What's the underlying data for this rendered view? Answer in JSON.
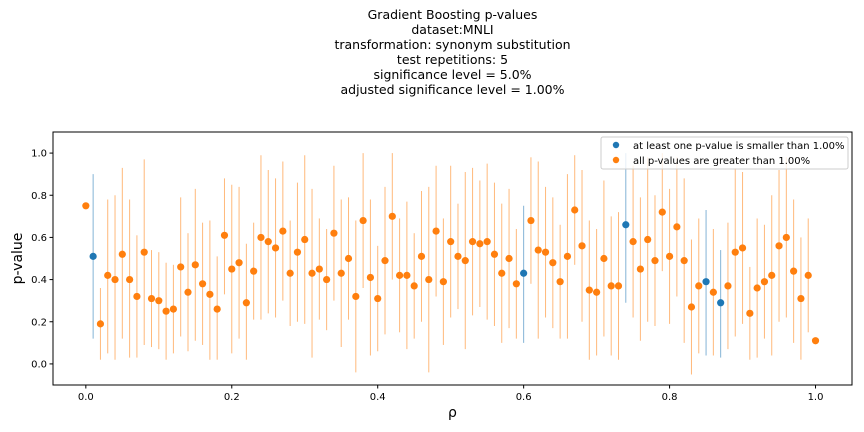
{
  "chart_data": {
    "type": "scatter",
    "title_lines": [
      "Gradient Boosting p-values",
      "",
      "dataset:MNLI",
      "transformation: synonym substitution",
      "test repetitions: 5",
      "significance level = 5.0%",
      "adjusted significance level = 1.00%"
    ],
    "xlabel": "ρ",
    "ylabel": "p-value",
    "xlim": [
      -0.045,
      1.05
    ],
    "ylim": [
      -0.1,
      1.1
    ],
    "xticks": [
      0.0,
      0.2,
      0.4,
      0.6,
      0.8,
      1.0
    ],
    "xtick_labels": [
      "0.0",
      "0.2",
      "0.4",
      "0.6",
      "0.8",
      "1.0"
    ],
    "yticks": [
      0.0,
      0.2,
      0.4,
      0.6,
      0.8,
      1.0
    ],
    "ytick_labels": [
      "0.0",
      "0.2",
      "0.4",
      "0.6",
      "0.8",
      "1.0"
    ],
    "legend_position": "top-right",
    "grid": false,
    "series": [
      {
        "name": "at least one p-value is smaller than 1.00%",
        "color": "#1f77b4",
        "points": [
          {
            "x": 0.01,
            "y": 0.51,
            "ymin": 0.12,
            "ymax": 0.9
          },
          {
            "x": 0.6,
            "y": 0.43,
            "ymin": 0.1,
            "ymax": 0.75
          },
          {
            "x": 0.74,
            "y": 0.66,
            "ymin": 0.29,
            "ymax": 1.0
          },
          {
            "x": 0.85,
            "y": 0.39,
            "ymin": 0.04,
            "ymax": 0.73
          },
          {
            "x": 0.87,
            "y": 0.29,
            "ymin": 0.03,
            "ymax": 0.54
          }
        ]
      },
      {
        "name": "all p-values are greater than 1.00%",
        "color": "#ff7f0e",
        "points": [
          {
            "x": 0.0,
            "y": 0.75,
            "ymin": 0.75,
            "ymax": 0.75
          },
          {
            "x": 0.02,
            "y": 0.19,
            "ymin": 0.02,
            "ymax": 0.36
          },
          {
            "x": 0.03,
            "y": 0.42,
            "ymin": 0.05,
            "ymax": 0.78
          },
          {
            "x": 0.04,
            "y": 0.4,
            "ymin": 0.02,
            "ymax": 0.8
          },
          {
            "x": 0.05,
            "y": 0.52,
            "ymin": 0.12,
            "ymax": 0.93
          },
          {
            "x": 0.06,
            "y": 0.4,
            "ymin": 0.03,
            "ymax": 0.78
          },
          {
            "x": 0.07,
            "y": 0.32,
            "ymin": 0.03,
            "ymax": 0.61
          },
          {
            "x": 0.08,
            "y": 0.53,
            "ymin": 0.09,
            "ymax": 0.97
          },
          {
            "x": 0.09,
            "y": 0.31,
            "ymin": 0.08,
            "ymax": 0.54
          },
          {
            "x": 0.1,
            "y": 0.3,
            "ymin": 0.07,
            "ymax": 0.53
          },
          {
            "x": 0.11,
            "y": 0.25,
            "ymin": 0.02,
            "ymax": 0.48
          },
          {
            "x": 0.12,
            "y": 0.26,
            "ymin": 0.05,
            "ymax": 0.47
          },
          {
            "x": 0.13,
            "y": 0.46,
            "ymin": 0.13,
            "ymax": 0.79
          },
          {
            "x": 0.14,
            "y": 0.34,
            "ymin": 0.06,
            "ymax": 0.62
          },
          {
            "x": 0.15,
            "y": 0.47,
            "ymin": 0.11,
            "ymax": 0.83
          },
          {
            "x": 0.16,
            "y": 0.38,
            "ymin": 0.09,
            "ymax": 0.67
          },
          {
            "x": 0.17,
            "y": 0.33,
            "ymin": 0.02,
            "ymax": 0.68
          },
          {
            "x": 0.18,
            "y": 0.26,
            "ymin": 0.02,
            "ymax": 0.51
          },
          {
            "x": 0.19,
            "y": 0.61,
            "ymin": 0.33,
            "ymax": 0.88
          },
          {
            "x": 0.2,
            "y": 0.45,
            "ymin": 0.05,
            "ymax": 0.85
          },
          {
            "x": 0.21,
            "y": 0.48,
            "ymin": 0.12,
            "ymax": 0.84
          },
          {
            "x": 0.22,
            "y": 0.29,
            "ymin": 0.02,
            "ymax": 0.57
          },
          {
            "x": 0.23,
            "y": 0.44,
            "ymin": 0.21,
            "ymax": 0.67
          },
          {
            "x": 0.24,
            "y": 0.6,
            "ymin": 0.21,
            "ymax": 0.99
          },
          {
            "x": 0.25,
            "y": 0.58,
            "ymin": 0.24,
            "ymax": 0.92
          },
          {
            "x": 0.26,
            "y": 0.55,
            "ymin": 0.22,
            "ymax": 0.88
          },
          {
            "x": 0.27,
            "y": 0.63,
            "ymin": 0.3,
            "ymax": 0.96
          },
          {
            "x": 0.28,
            "y": 0.43,
            "ymin": 0.18,
            "ymax": 0.68
          },
          {
            "x": 0.29,
            "y": 0.53,
            "ymin": 0.2,
            "ymax": 0.86
          },
          {
            "x": 0.3,
            "y": 0.59,
            "ymin": 0.19,
            "ymax": 0.99
          },
          {
            "x": 0.31,
            "y": 0.43,
            "ymin": 0.03,
            "ymax": 0.83
          },
          {
            "x": 0.32,
            "y": 0.45,
            "ymin": 0.21,
            "ymax": 0.69
          },
          {
            "x": 0.33,
            "y": 0.4,
            "ymin": 0.16,
            "ymax": 0.64
          },
          {
            "x": 0.34,
            "y": 0.62,
            "ymin": 0.3,
            "ymax": 0.94
          },
          {
            "x": 0.35,
            "y": 0.43,
            "ymin": 0.08,
            "ymax": 0.78
          },
          {
            "x": 0.36,
            "y": 0.5,
            "ymin": 0.21,
            "ymax": 0.79
          },
          {
            "x": 0.37,
            "y": 0.32,
            "ymin": -0.04,
            "ymax": 0.68
          },
          {
            "x": 0.38,
            "y": 0.68,
            "ymin": 0.36,
            "ymax": 1.0
          },
          {
            "x": 0.39,
            "y": 0.41,
            "ymin": 0.04,
            "ymax": 0.78
          },
          {
            "x": 0.4,
            "y": 0.31,
            "ymin": 0.06,
            "ymax": 0.56
          },
          {
            "x": 0.41,
            "y": 0.49,
            "ymin": 0.14,
            "ymax": 0.84
          },
          {
            "x": 0.42,
            "y": 0.7,
            "ymin": 0.4,
            "ymax": 1.0
          },
          {
            "x": 0.43,
            "y": 0.42,
            "ymin": 0.15,
            "ymax": 0.69
          },
          {
            "x": 0.44,
            "y": 0.42,
            "ymin": 0.07,
            "ymax": 0.77
          },
          {
            "x": 0.45,
            "y": 0.37,
            "ymin": 0.12,
            "ymax": 0.62
          },
          {
            "x": 0.46,
            "y": 0.51,
            "ymin": 0.2,
            "ymax": 0.82
          },
          {
            "x": 0.47,
            "y": 0.4,
            "ymin": -0.04,
            "ymax": 0.84
          },
          {
            "x": 0.48,
            "y": 0.63,
            "ymin": 0.32,
            "ymax": 0.94
          },
          {
            "x": 0.49,
            "y": 0.39,
            "ymin": 0.09,
            "ymax": 0.69
          },
          {
            "x": 0.5,
            "y": 0.58,
            "ymin": 0.22,
            "ymax": 0.94
          },
          {
            "x": 0.51,
            "y": 0.51,
            "ymin": 0.26,
            "ymax": 0.76
          },
          {
            "x": 0.52,
            "y": 0.49,
            "ymin": 0.07,
            "ymax": 0.91
          },
          {
            "x": 0.53,
            "y": 0.58,
            "ymin": 0.23,
            "ymax": 0.93
          },
          {
            "x": 0.54,
            "y": 0.57,
            "ymin": 0.27,
            "ymax": 0.87
          },
          {
            "x": 0.55,
            "y": 0.58,
            "ymin": 0.21,
            "ymax": 0.95
          },
          {
            "x": 0.56,
            "y": 0.52,
            "ymin": 0.18,
            "ymax": 0.86
          },
          {
            "x": 0.57,
            "y": 0.43,
            "ymin": 0.1,
            "ymax": 0.76
          },
          {
            "x": 0.58,
            "y": 0.5,
            "ymin": 0.17,
            "ymax": 0.83
          },
          {
            "x": 0.59,
            "y": 0.38,
            "ymin": 0.12,
            "ymax": 0.64
          },
          {
            "x": 0.61,
            "y": 0.68,
            "ymin": 0.38,
            "ymax": 0.98
          },
          {
            "x": 0.62,
            "y": 0.54,
            "ymin": 0.12,
            "ymax": 0.96
          },
          {
            "x": 0.63,
            "y": 0.53,
            "ymin": 0.22,
            "ymax": 0.84
          },
          {
            "x": 0.64,
            "y": 0.48,
            "ymin": 0.17,
            "ymax": 0.79
          },
          {
            "x": 0.65,
            "y": 0.39,
            "ymin": 0.12,
            "ymax": 0.66
          },
          {
            "x": 0.66,
            "y": 0.51,
            "ymin": 0.12,
            "ymax": 0.9
          },
          {
            "x": 0.67,
            "y": 0.73,
            "ymin": 0.47,
            "ymax": 0.99
          },
          {
            "x": 0.68,
            "y": 0.56,
            "ymin": 0.2,
            "ymax": 0.92
          },
          {
            "x": 0.69,
            "y": 0.35,
            "ymin": 0.02,
            "ymax": 0.68
          },
          {
            "x": 0.7,
            "y": 0.34,
            "ymin": 0.04,
            "ymax": 0.64
          },
          {
            "x": 0.71,
            "y": 0.5,
            "ymin": 0.13,
            "ymax": 0.87
          },
          {
            "x": 0.72,
            "y": 0.37,
            "ymin": 0.04,
            "ymax": 0.7
          },
          {
            "x": 0.73,
            "y": 0.37,
            "ymin": 0.02,
            "ymax": 0.72
          },
          {
            "x": 0.75,
            "y": 0.58,
            "ymin": 0.22,
            "ymax": 0.94
          },
          {
            "x": 0.76,
            "y": 0.45,
            "ymin": 0.11,
            "ymax": 0.79
          },
          {
            "x": 0.77,
            "y": 0.59,
            "ymin": 0.2,
            "ymax": 0.98
          },
          {
            "x": 0.78,
            "y": 0.49,
            "ymin": 0.18,
            "ymax": 0.8
          },
          {
            "x": 0.79,
            "y": 0.72,
            "ymin": 0.44,
            "ymax": 1.0
          },
          {
            "x": 0.8,
            "y": 0.51,
            "ymin": 0.19,
            "ymax": 0.83
          },
          {
            "x": 0.81,
            "y": 0.65,
            "ymin": 0.32,
            "ymax": 0.98
          },
          {
            "x": 0.82,
            "y": 0.49,
            "ymin": 0.1,
            "ymax": 0.88
          },
          {
            "x": 0.83,
            "y": 0.27,
            "ymin": -0.05,
            "ymax": 0.59
          },
          {
            "x": 0.84,
            "y": 0.37,
            "ymin": 0.05,
            "ymax": 0.69
          },
          {
            "x": 0.86,
            "y": 0.34,
            "ymin": 0.04,
            "ymax": 0.64
          },
          {
            "x": 0.88,
            "y": 0.37,
            "ymin": 0.07,
            "ymax": 0.67
          },
          {
            "x": 0.89,
            "y": 0.53,
            "ymin": 0.13,
            "ymax": 0.93
          },
          {
            "x": 0.9,
            "y": 0.55,
            "ymin": 0.19,
            "ymax": 0.91
          },
          {
            "x": 0.91,
            "y": 0.24,
            "ymin": 0.02,
            "ymax": 0.46
          },
          {
            "x": 0.92,
            "y": 0.36,
            "ymin": 0.03,
            "ymax": 0.69
          },
          {
            "x": 0.93,
            "y": 0.39,
            "ymin": 0.12,
            "ymax": 0.66
          },
          {
            "x": 0.94,
            "y": 0.42,
            "ymin": 0.04,
            "ymax": 0.8
          },
          {
            "x": 0.95,
            "y": 0.56,
            "ymin": 0.2,
            "ymax": 0.92
          },
          {
            "x": 0.96,
            "y": 0.6,
            "ymin": 0.22,
            "ymax": 0.98
          },
          {
            "x": 0.97,
            "y": 0.44,
            "ymin": 0.1,
            "ymax": 0.78
          },
          {
            "x": 0.98,
            "y": 0.31,
            "ymin": 0.02,
            "ymax": 0.6
          },
          {
            "x": 0.99,
            "y": 0.42,
            "ymin": 0.15,
            "ymax": 0.69
          },
          {
            "x": 1.0,
            "y": 0.11,
            "ymin": 0.11,
            "ymax": 0.11
          }
        ]
      }
    ]
  }
}
